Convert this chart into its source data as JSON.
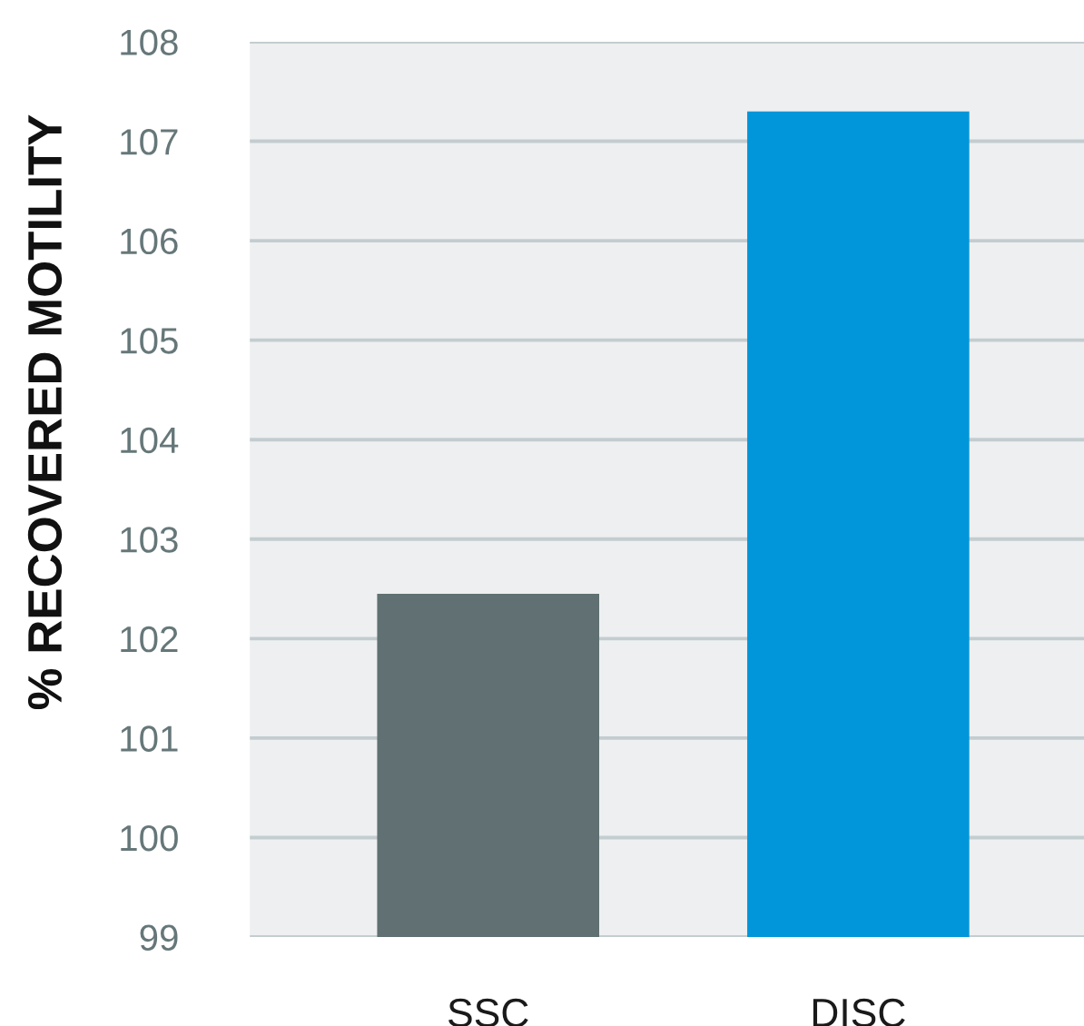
{
  "chart_data": {
    "type": "bar",
    "ylabel": "% RECOVERED MOTILITY",
    "categories": [
      "SSC",
      "DISC"
    ],
    "values": [
      102.45,
      107.3
    ],
    "colors": [
      "#607073",
      "#0096d9"
    ],
    "ylim": [
      99,
      108
    ],
    "yticks": [
      99,
      100,
      101,
      102,
      103,
      104,
      105,
      106,
      107,
      108
    ],
    "grid": "y"
  }
}
